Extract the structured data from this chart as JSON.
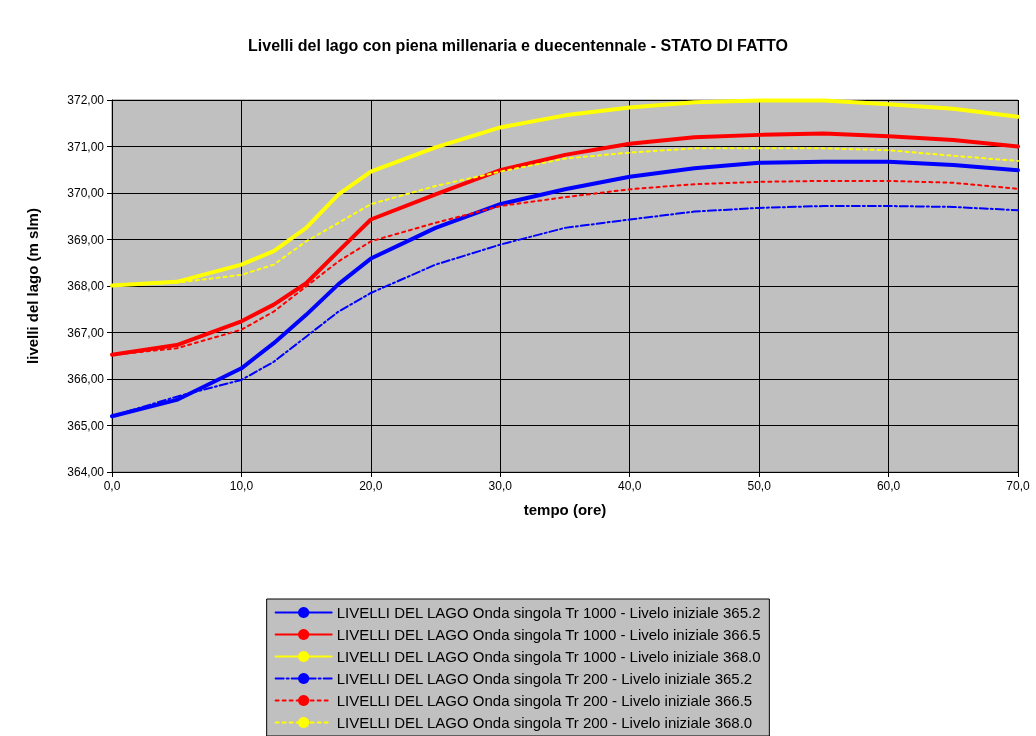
{
  "chart_data": {
    "type": "line",
    "title": "Livelli del lago con piena millenaria e duecentennale - STATO DI FATTO",
    "xlabel": "tempo (ore)",
    "ylabel": "livelli del lago (m slm)",
    "x": [
      0,
      5,
      10,
      12.5,
      15,
      17.5,
      20,
      25,
      30,
      35,
      40,
      45,
      50,
      55,
      60,
      65,
      70
    ],
    "xlim": [
      0,
      70
    ],
    "xticks": [
      {
        "value": 0,
        "label": "0,0"
      },
      {
        "value": 10,
        "label": "10,0"
      },
      {
        "value": 20,
        "label": "20,0"
      },
      {
        "value": 30,
        "label": "30,0"
      },
      {
        "value": 40,
        "label": "40,0"
      },
      {
        "value": 50,
        "label": "50,0"
      },
      {
        "value": 60,
        "label": "60,0"
      },
      {
        "value": 70,
        "label": "70,0"
      }
    ],
    "ylim": [
      364,
      372
    ],
    "yticks": [
      {
        "value": 364,
        "label": "364,00"
      },
      {
        "value": 365,
        "label": "365,00"
      },
      {
        "value": 366,
        "label": "366,00"
      },
      {
        "value": 367,
        "label": "367,00"
      },
      {
        "value": 368,
        "label": "368,00"
      },
      {
        "value": 369,
        "label": "369,00"
      },
      {
        "value": 370,
        "label": "370,00"
      },
      {
        "value": 371,
        "label": "371,00"
      },
      {
        "value": 372,
        "label": "372,00"
      }
    ],
    "grid": true,
    "legend": "bottom",
    "marker": "none",
    "series": [
      {
        "name": "LIVELLI DEL LAGO Onda singola Tr 1000 - Livelo iniziale 365.2",
        "color": "#0000ff",
        "line_style": "solid",
        "values": [
          365.2,
          365.55,
          366.23,
          366.77,
          367.38,
          368.04,
          368.59,
          369.25,
          369.76,
          370.08,
          370.35,
          370.53,
          370.65,
          370.67,
          370.67,
          370.6,
          370.49
        ]
      },
      {
        "name": "LIVELLI DEL LAGO Onda singola Tr 1000 - Livelo iniziale 366.5",
        "color": "#ff0000",
        "line_style": "solid",
        "values": [
          366.52,
          366.73,
          367.24,
          367.6,
          368.06,
          368.75,
          369.43,
          369.97,
          370.49,
          370.82,
          371.06,
          371.2,
          371.25,
          371.28,
          371.22,
          371.14,
          371.0
        ]
      },
      {
        "name": "LIVELLI DEL LAGO Onda singola Tr 1000 - Livelo iniziale 368.0",
        "color": "#ffff00",
        "line_style": "solid",
        "values": [
          368.01,
          368.09,
          368.46,
          368.75,
          369.25,
          369.97,
          370.46,
          370.98,
          371.41,
          371.67,
          371.84,
          371.95,
          371.99,
          371.99,
          371.91,
          371.81,
          371.64
        ]
      },
      {
        "name": "LIVELLI DEL LAGO Onda singola Tr 200 - Livelo iniziale 365.2",
        "color": "#0000ff",
        "line_style": "dashed",
        "values": [
          365.2,
          365.62,
          365.98,
          366.37,
          366.91,
          367.45,
          367.85,
          368.46,
          368.89,
          369.25,
          369.43,
          369.6,
          369.68,
          369.72,
          369.72,
          369.7,
          369.63
        ]
      },
      {
        "name": "LIVELLI DEL LAGO Onda singola Tr 200 - Livelo iniziale 366.5",
        "color": "#ff0000",
        "line_style": "dotted",
        "values": [
          366.52,
          366.66,
          367.06,
          367.45,
          367.99,
          368.53,
          368.96,
          369.36,
          369.72,
          369.91,
          370.08,
          370.19,
          370.24,
          370.26,
          370.26,
          370.22,
          370.09
        ]
      },
      {
        "name": "LIVELLI DEL LAGO Onda singola Tr 200 - Livelo iniziale 368.0",
        "color": "#ffff00",
        "line_style": "dotted",
        "values": [
          368.01,
          368.07,
          368.24,
          368.46,
          368.96,
          369.36,
          369.76,
          370.15,
          370.46,
          370.74,
          370.87,
          370.96,
          370.96,
          370.96,
          370.92,
          370.8,
          370.69
        ]
      }
    ]
  }
}
